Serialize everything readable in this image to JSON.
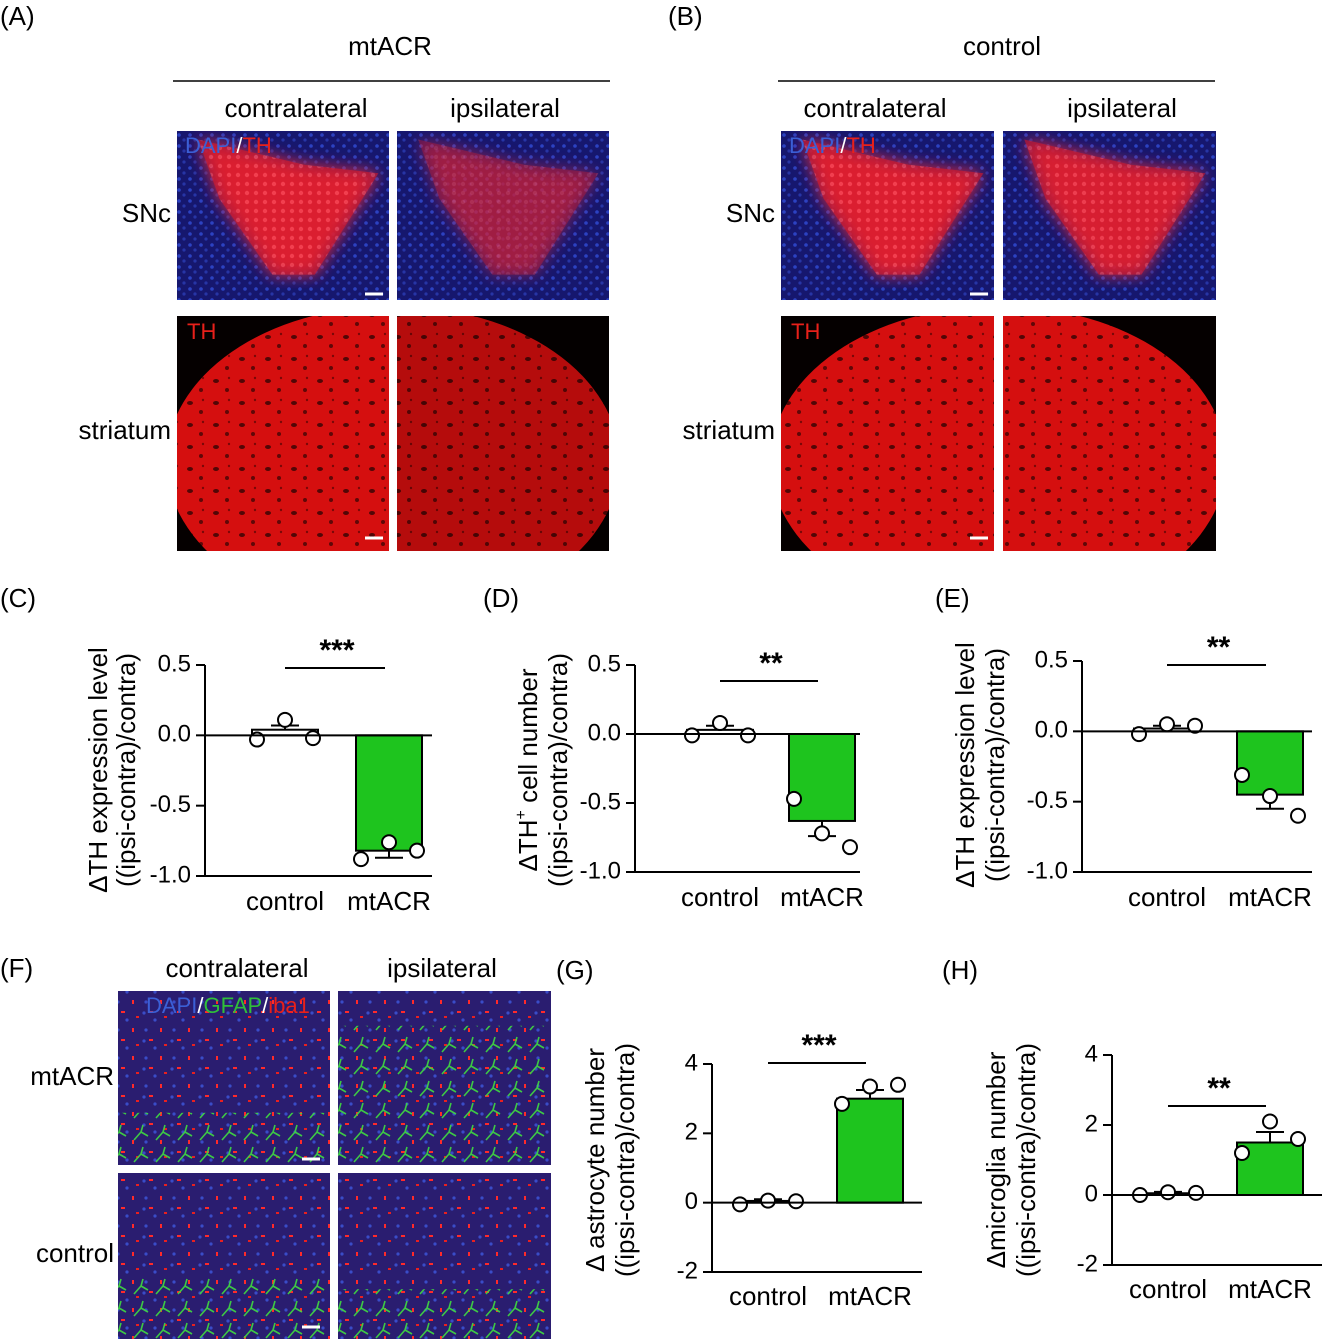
{
  "panels": {
    "A": {
      "label": "(A)",
      "title": "mtACR",
      "columns": [
        "contralateral",
        "ipsilateral"
      ],
      "rows": [
        "SNc",
        "striatum"
      ],
      "stain_snc": [
        "DAPI",
        "/",
        "TH"
      ],
      "stain_striatum": [
        "TH"
      ]
    },
    "B": {
      "label": "(B)",
      "title": "control",
      "columns": [
        "contralateral",
        "ipsilateral"
      ],
      "rows": [
        "SNc",
        "striatum"
      ],
      "stain_snc": [
        "DAPI",
        "/",
        "TH"
      ],
      "stain_striatum": [
        "TH"
      ]
    },
    "F": {
      "label": "(F)",
      "columns": [
        "contralateral",
        "ipsilateral"
      ],
      "rows": [
        "mtACR",
        "control"
      ],
      "stain": [
        "DAPI",
        "/",
        "GFAP",
        "/",
        "iba1"
      ]
    }
  },
  "stain_colors": {
    "DAPI": "#3b5fd6",
    "/": "#ffffff",
    "TH": "#e8201a",
    "GFAP": "#2fbf3a",
    "iba1": "#e8201a"
  },
  "chart_data": [
    {
      "type": "bar",
      "label": "(C)",
      "ylabel": [
        [
          {
            "text": "ΔTH expression level"
          }
        ],
        [
          {
            "text": "((ipsi-contra)/contra)"
          }
        ]
      ],
      "categories": [
        "control",
        "mtACR"
      ],
      "colors": [
        "#ffffff",
        "#1ec41e"
      ],
      "values": [
        0.04,
        -0.82
      ],
      "errors": [
        0.03,
        0.05
      ],
      "points": [
        [
          -0.03,
          0.11,
          -0.02
        ],
        [
          -0.88,
          -0.76,
          -0.82
        ]
      ],
      "significance": "***",
      "ylim": [
        -1.0,
        0.5
      ],
      "yticks": [
        {
          "value": -1.0,
          "label": "-1.0"
        },
        -0.5,
        {
          "value": 0,
          "label": "0.0"
        },
        0.5
      ]
    },
    {
      "type": "bar",
      "label": "(D)",
      "ylabel": [
        [
          {
            "text": "ΔTH"
          },
          {
            "text": "+",
            "sup": true
          },
          {
            "text": " cell number"
          }
        ],
        [
          {
            "text": "((ipsi-contra)/contra)"
          }
        ]
      ],
      "categories": [
        "control",
        "mtACR"
      ],
      "colors": [
        "#ffffff",
        "#1ec41e"
      ],
      "values": [
        0.03,
        -0.63
      ],
      "errors": [
        0.03,
        0.11
      ],
      "points": [
        [
          -0.01,
          0.08,
          -0.01
        ],
        [
          -0.47,
          -0.72,
          -0.82
        ]
      ],
      "significance": "**",
      "ylim": [
        -1.0,
        0.5
      ],
      "yticks": [
        {
          "value": -1.0,
          "label": "-1.0"
        },
        -0.5,
        {
          "value": 0,
          "label": "0.0"
        },
        0.5
      ]
    },
    {
      "type": "bar",
      "label": "(E)",
      "ylabel": [
        [
          {
            "text": "ΔTH expression level"
          }
        ],
        [
          {
            "text": "((ipsi-contra)/contra)"
          }
        ]
      ],
      "categories": [
        "control",
        "mtACR"
      ],
      "colors": [
        "#ffffff",
        "#1ec41e"
      ],
      "values": [
        0.02,
        -0.45
      ],
      "errors": [
        0.02,
        0.1
      ],
      "points": [
        [
          -0.02,
          0.05,
          0.04
        ],
        [
          -0.31,
          -0.46,
          -0.6
        ]
      ],
      "significance": "**",
      "ylim": [
        -1.0,
        0.5
      ],
      "yticks": [
        {
          "value": -1.0,
          "label": "-1.0"
        },
        -0.5,
        {
          "value": 0,
          "label": "0.0"
        },
        0.5
      ]
    },
    {
      "type": "bar",
      "label": "(G)",
      "ylabel": [
        [
          {
            "text": "Δ astrocyte number"
          }
        ],
        [
          {
            "text": "((ipsi-contra)/contra)"
          }
        ]
      ],
      "categories": [
        "control",
        "mtACR"
      ],
      "colors": [
        "#ffffff",
        "#1ec41e"
      ],
      "values": [
        0.05,
        3.0
      ],
      "errors": [
        0.05,
        0.25
      ],
      "points": [
        [
          -0.05,
          0.06,
          0.04
        ],
        [
          2.85,
          3.35,
          3.4
        ]
      ],
      "significance": "***",
      "ylim": [
        -2,
        4
      ],
      "yticks": [
        -2,
        0,
        2,
        4
      ]
    },
    {
      "type": "bar",
      "label": "(H)",
      "ylabel": [
        [
          {
            "text": "Δmicroglia number"
          }
        ],
        [
          {
            "text": "((ipsi-contra)/contra)"
          }
        ]
      ],
      "categories": [
        "control",
        "mtACR"
      ],
      "colors": [
        "#ffffff",
        "#1ec41e"
      ],
      "values": [
        0.05,
        1.5
      ],
      "errors": [
        0.04,
        0.3
      ],
      "points": [
        [
          0.0,
          0.08,
          0.06
        ],
        [
          1.2,
          2.1,
          1.6
        ]
      ],
      "significance": "**",
      "ylim": [
        -2,
        4
      ],
      "yticks": [
        -2,
        0,
        2,
        4
      ]
    }
  ]
}
